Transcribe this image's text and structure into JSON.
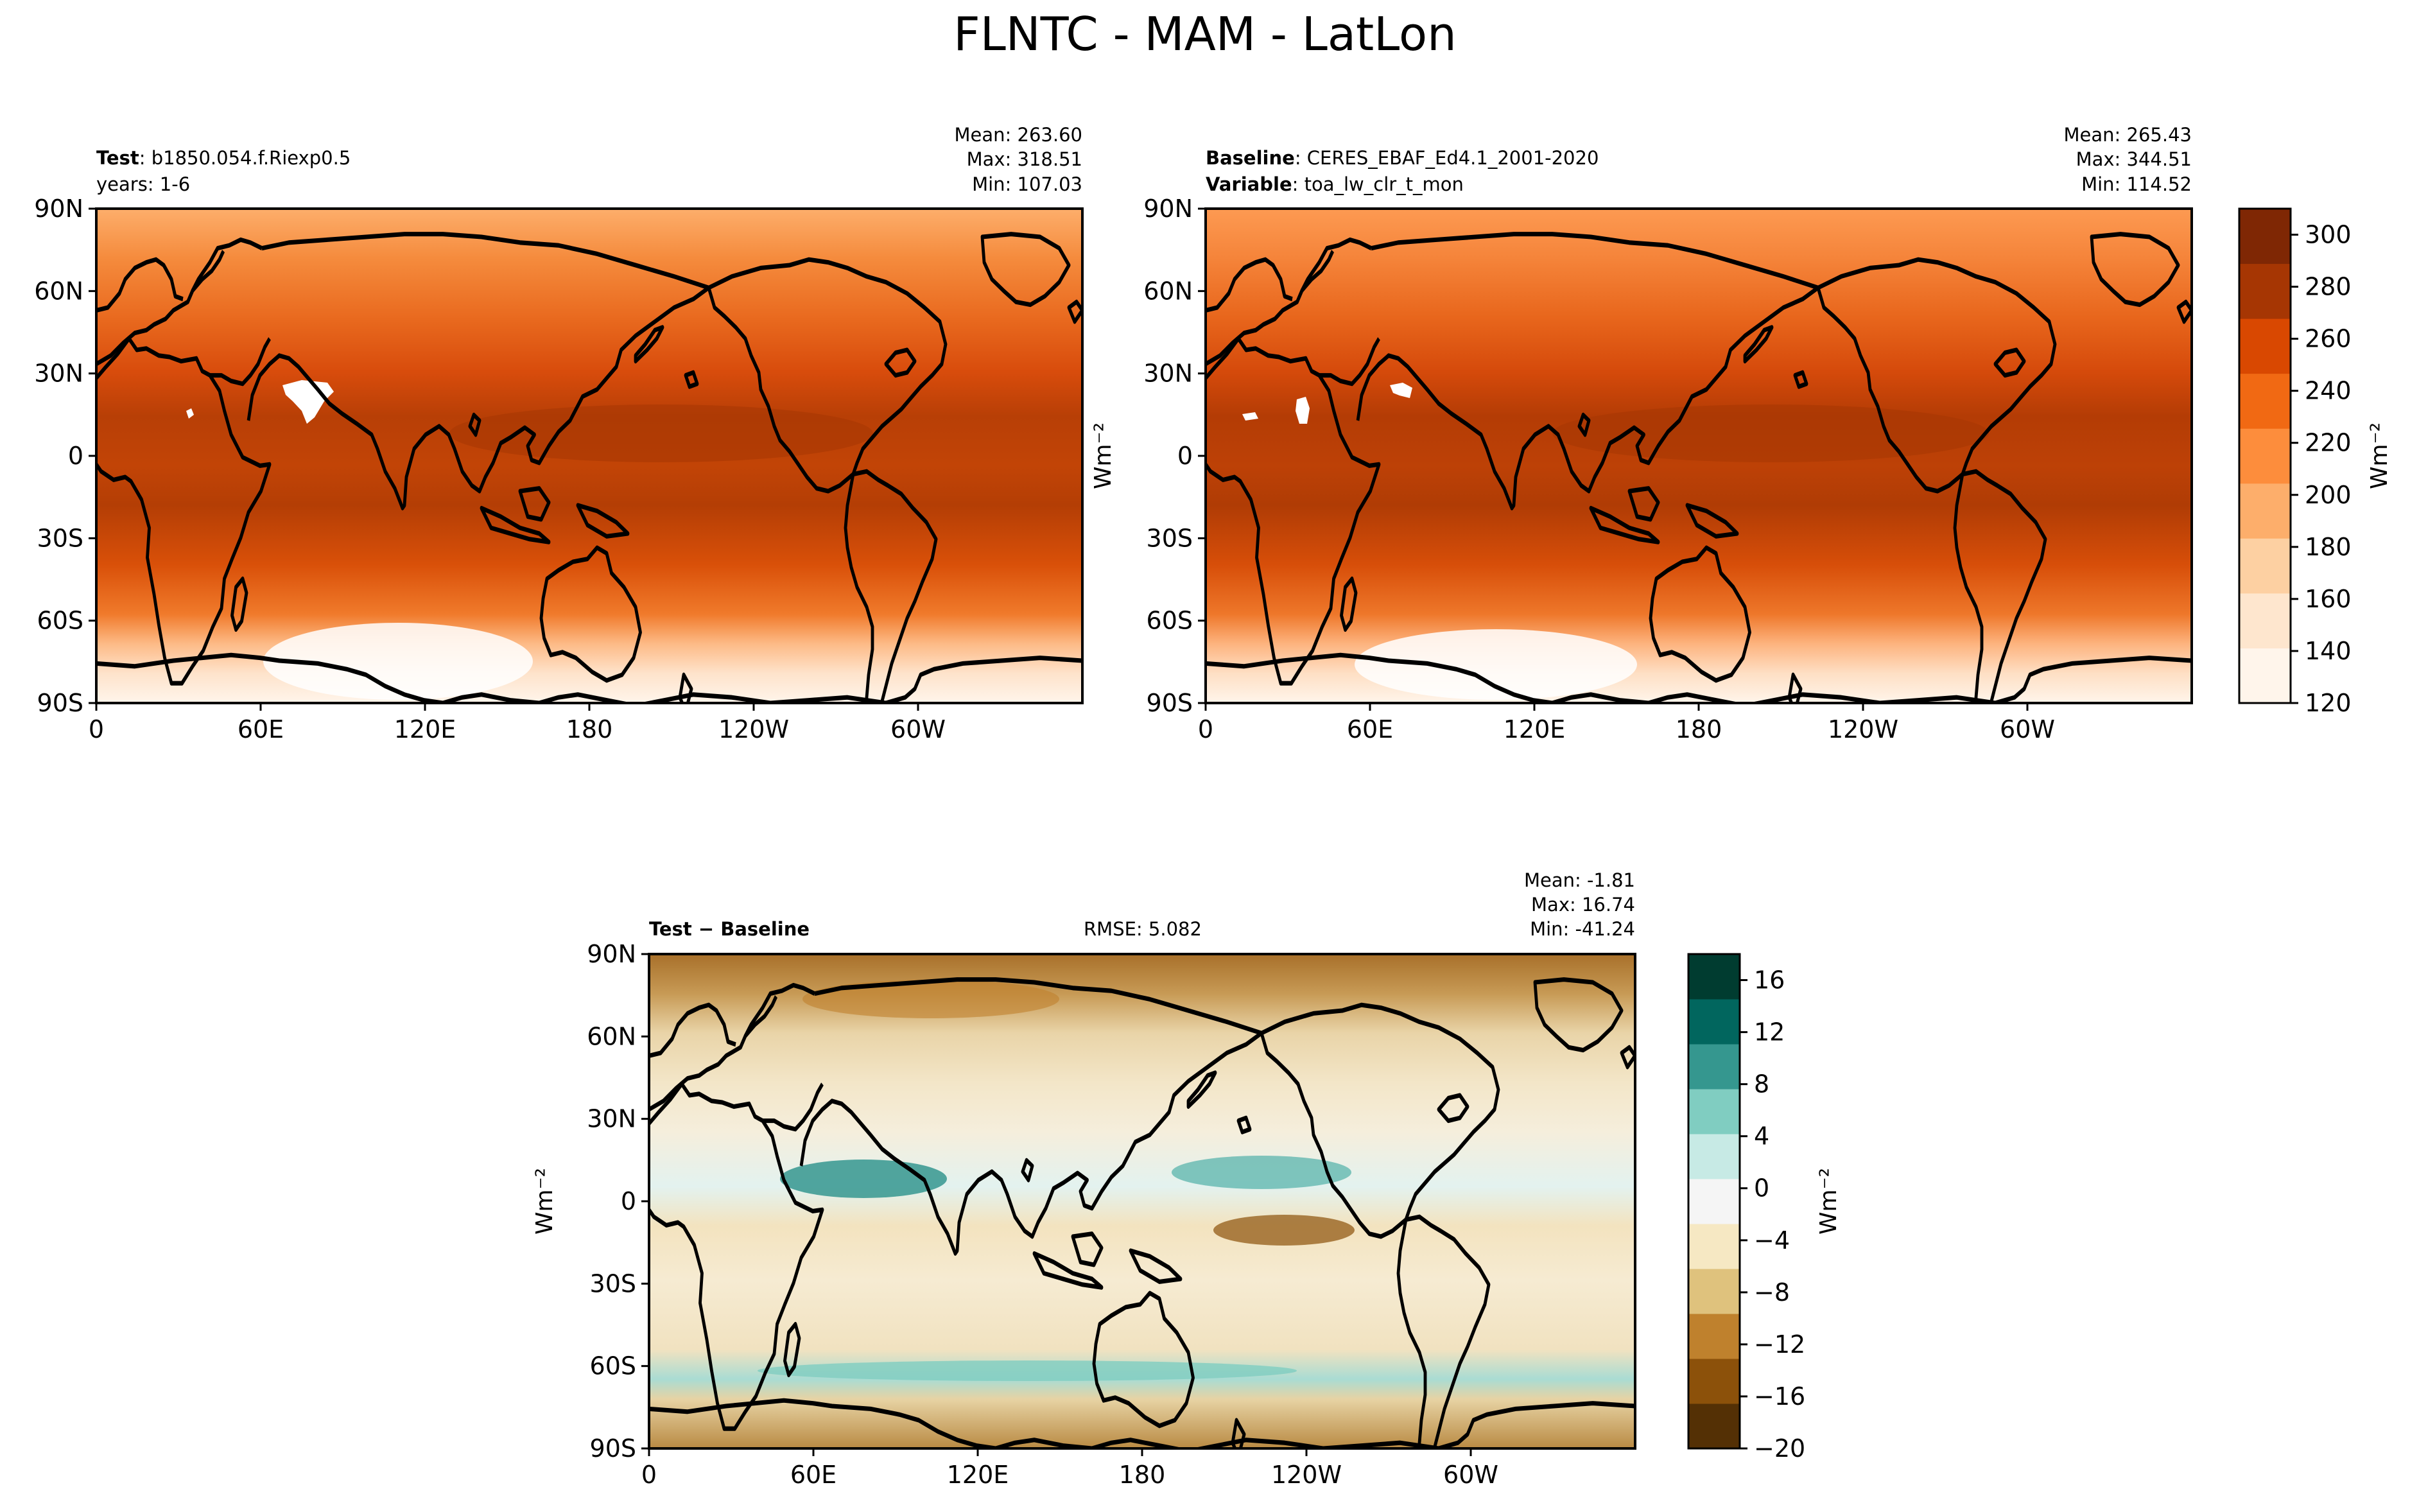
{
  "figure": {
    "title": "FLNTC - MAM - LatLon"
  },
  "colors": {
    "test_ramp": [
      "#fff5eb",
      "#fee6ce",
      "#fdd0a2",
      "#fdae6b",
      "#fd8d3c",
      "#f16913",
      "#d94801",
      "#a63603",
      "#7f2704"
    ],
    "diff_ramp": [
      "#543005",
      "#8c510a",
      "#bf812d",
      "#dfc27d",
      "#f6e8c3",
      "#f5f5f5",
      "#c7eae5",
      "#80cdc1",
      "#35978f",
      "#01665e",
      "#003c30"
    ],
    "missing": "#ffffff",
    "coast": "#000000"
  },
  "panels": {
    "test": {
      "label_bold": "Test",
      "label_text": ": b1850.054.f.Riexp0.5",
      "line2": "years: 1-6",
      "stats": [
        "Mean: 263.60",
        "Max: 318.51",
        "Min: 107.03"
      ]
    },
    "baseline": {
      "label_bold": "Baseline",
      "label_text": ": CERES_EBAF_Ed4.1_2001-2020",
      "line2_bold": "Variable",
      "line2_text": ": toa_lw_clr_t_mon",
      "stats": [
        "Mean: 265.43",
        "Max: 344.51",
        "Min: 114.52"
      ]
    },
    "diff": {
      "label_bold": "Test − Baseline",
      "rmse": "RMSE: 5.082",
      "stats": [
        "Mean: -1.81",
        "Max: 16.74",
        "Min: -41.24"
      ]
    }
  },
  "axes": {
    "lat_ticks": [
      "90N",
      "60N",
      "30N",
      "0",
      "30S",
      "60S",
      "90S"
    ],
    "lon_ticks": [
      "0",
      "60E",
      "120E",
      "180",
      "120W",
      "60W"
    ],
    "units": "Wm⁻²"
  },
  "chart_data": [
    {
      "type": "heatmap",
      "title": "Test",
      "xlabel": "",
      "ylabel": "",
      "x_ticks": [
        "0",
        "60E",
        "120E",
        "180",
        "120W",
        "60W"
      ],
      "y_ticks": [
        "90N",
        "60N",
        "30N",
        "0",
        "30S",
        "60S",
        "90S"
      ],
      "xlim": [
        0,
        360
      ],
      "ylim": [
        -90,
        90
      ],
      "mean": 263.6,
      "max": 318.51,
      "min": 107.03,
      "colorbar": {
        "ticks": [
          120,
          140,
          160,
          180,
          200,
          220,
          240,
          260,
          280,
          300
        ],
        "range": [
          120,
          310
        ],
        "label": "Wm⁻²"
      },
      "zonal_profile": {
        "lat": [
          -90,
          -80,
          -70,
          -60,
          -45,
          -30,
          -15,
          0,
          15,
          30,
          45,
          60,
          75,
          90
        ],
        "value": [
          130,
          150,
          200,
          240,
          262,
          280,
          292,
          290,
          290,
          275,
          252,
          232,
          212,
          200
        ]
      }
    },
    {
      "type": "heatmap",
      "title": "Baseline",
      "xlabel": "",
      "ylabel": "Wm⁻²",
      "x_ticks": [
        "0",
        "60E",
        "120E",
        "180",
        "120W",
        "60W"
      ],
      "y_ticks": [
        "90N",
        "60N",
        "30N",
        "0",
        "30S",
        "60S",
        "90S"
      ],
      "xlim": [
        0,
        360
      ],
      "ylim": [
        -90,
        90
      ],
      "mean": 265.43,
      "max": 344.51,
      "min": 114.52,
      "colorbar": {
        "ticks": [
          120,
          140,
          160,
          180,
          200,
          220,
          240,
          260,
          280,
          300
        ],
        "range": [
          120,
          310
        ],
        "label": "Wm⁻²"
      },
      "zonal_profile": {
        "lat": [
          -90,
          -80,
          -70,
          -60,
          -45,
          -30,
          -15,
          0,
          15,
          30,
          45,
          60,
          75,
          90
        ],
        "value": [
          135,
          152,
          202,
          240,
          262,
          280,
          293,
          292,
          292,
          277,
          255,
          234,
          215,
          205
        ]
      }
    },
    {
      "type": "heatmap",
      "title": "Test − Baseline",
      "xlabel": "",
      "ylabel": "Wm⁻²",
      "x_ticks": [
        "0",
        "60E",
        "120E",
        "180",
        "120W",
        "60W"
      ],
      "y_ticks": [
        "90N",
        "60N",
        "30N",
        "0",
        "30S",
        "60S",
        "90S"
      ],
      "xlim": [
        0,
        360
      ],
      "ylim": [
        -90,
        90
      ],
      "mean": -1.81,
      "max": 16.74,
      "min": -41.24,
      "rmse": 5.082,
      "colorbar": {
        "ticks": [
          -20,
          -16,
          -12,
          -8,
          -4,
          0,
          4,
          8,
          12,
          16
        ],
        "range": [
          -20,
          18
        ],
        "label": "Wm⁻²"
      }
    }
  ]
}
